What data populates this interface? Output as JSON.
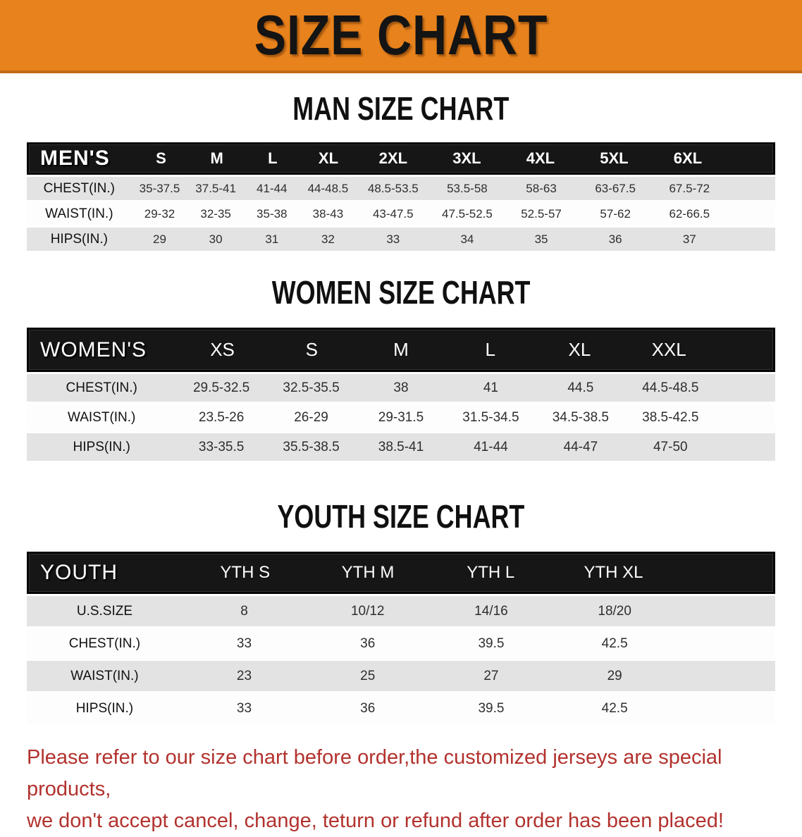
{
  "banner": {
    "title": "SIZE CHART"
  },
  "sections": [
    {
      "title": "MAN SIZE CHART",
      "header_label": "MEN'S",
      "columns": [
        "S",
        "M",
        "L",
        "XL",
        "2XL",
        "3XL",
        "4XL",
        "5XL",
        "6XL"
      ],
      "rows": [
        {
          "label": "CHEST(IN.)",
          "values": [
            "35-37.5",
            "37.5-41",
            "41-44",
            "44-48.5",
            "48.5-53.5",
            "53.5-58",
            "58-63",
            "63-67.5",
            "67.5-72"
          ]
        },
        {
          "label": "WAIST(IN.)",
          "values": [
            "29-32",
            "32-35",
            "35-38",
            "38-43",
            "43-47.5",
            "47.5-52.5",
            "52.5-57",
            "57-62",
            "62-66.5"
          ]
        },
        {
          "label": "HIPS(IN.)",
          "values": [
            "29",
            "30",
            "31",
            "32",
            "33",
            "34",
            "35",
            "36",
            "37"
          ]
        }
      ]
    },
    {
      "title": "WOMEN SIZE CHART",
      "header_label": "WOMEN'S",
      "columns": [
        "XS",
        "S",
        "M",
        "L",
        "XL",
        "XXL"
      ],
      "rows": [
        {
          "label": "CHEST(IN.)",
          "values": [
            "29.5-32.5",
            "32.5-35.5",
            "38",
            "41",
            "44.5",
            "44.5-48.5"
          ]
        },
        {
          "label": "WAIST(IN.)",
          "values": [
            "23.5-26",
            "26-29",
            "29-31.5",
            "31.5-34.5",
            "34.5-38.5",
            "38.5-42.5"
          ]
        },
        {
          "label": "HIPS(IN.)",
          "values": [
            "33-35.5",
            "35.5-38.5",
            "38.5-41",
            "41-44",
            "44-47",
            "47-50"
          ]
        }
      ]
    },
    {
      "title": "YOUTH SIZE CHART",
      "header_label": "YOUTH",
      "columns": [
        "YTH S",
        "YTH M",
        "YTH L",
        "YTH XL"
      ],
      "rows": [
        {
          "label": "U.S.SIZE",
          "values": [
            "8",
            "10/12",
            "14/16",
            "18/20"
          ]
        },
        {
          "label": "CHEST(IN.)",
          "values": [
            "33",
            "36",
            "39.5",
            "42.5"
          ]
        },
        {
          "label": "WAIST(IN.)",
          "values": [
            "23",
            "25",
            "27",
            "29"
          ]
        },
        {
          "label": "HIPS(IN.)",
          "values": [
            "33",
            "36",
            "39.5",
            "42.5"
          ]
        }
      ]
    }
  ],
  "footer": {
    "line1": "Please refer to our size chart before order,the customized jerseys are special products,",
    "line2": "we don't accept cancel, change, teturn or refund after order has been placed!"
  },
  "colors": {
    "banner_bg": "#e8821c",
    "banner_edge": "#c06a15",
    "header_bg": "#161616",
    "row_gray": "#e3e3e3",
    "row_white": "#fdfdfd",
    "note_red": "#b2322e"
  }
}
